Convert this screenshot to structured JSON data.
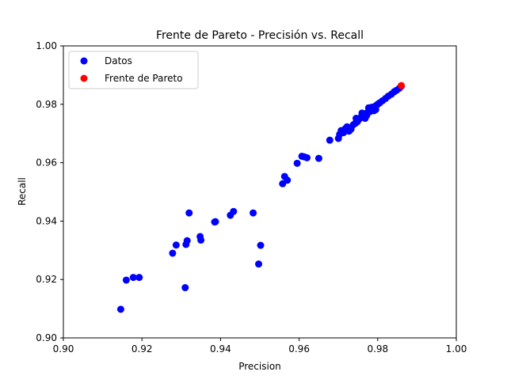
{
  "chart_data": {
    "type": "scatter",
    "title": "Frente de Pareto - Precisión vs. Recall",
    "xlabel": "Precision",
    "ylabel": "Recall",
    "xlim": [
      0.9,
      1.0
    ],
    "ylim": [
      0.9,
      1.0
    ],
    "xticks": [
      "0.90",
      "0.92",
      "0.94",
      "0.96",
      "0.98",
      "1.00"
    ],
    "yticks": [
      "0.90",
      "0.92",
      "0.94",
      "0.96",
      "0.98",
      "1.00"
    ],
    "grid": false,
    "legend_position": "top-left",
    "series": [
      {
        "name": "Datos",
        "color": "#0000ff",
        "points": [
          [
            0.9146,
            0.9098
          ],
          [
            0.916,
            0.9198
          ],
          [
            0.9178,
            0.9207
          ],
          [
            0.9193,
            0.9207
          ],
          [
            0.9278,
            0.929
          ],
          [
            0.9287,
            0.9318
          ],
          [
            0.931,
            0.9172
          ],
          [
            0.9312,
            0.932
          ],
          [
            0.9315,
            0.9333
          ],
          [
            0.932,
            0.9428
          ],
          [
            0.9385,
            0.9397
          ],
          [
            0.9387,
            0.9398
          ],
          [
            0.9348,
            0.9347
          ],
          [
            0.935,
            0.9335
          ],
          [
            0.9425,
            0.942
          ],
          [
            0.9433,
            0.9433
          ],
          [
            0.9483,
            0.9428
          ],
          [
            0.9497,
            0.9253
          ],
          [
            0.9502,
            0.9317
          ],
          [
            0.9558,
            0.9528
          ],
          [
            0.9563,
            0.9553
          ],
          [
            0.957,
            0.954
          ],
          [
            0.9595,
            0.9598
          ],
          [
            0.9607,
            0.9622
          ],
          [
            0.9613,
            0.962
          ],
          [
            0.962,
            0.9617
          ],
          [
            0.965,
            0.9615
          ],
          [
            0.9678,
            0.9677
          ],
          [
            0.97,
            0.9683
          ],
          [
            0.9703,
            0.9697
          ],
          [
            0.9707,
            0.971
          ],
          [
            0.9713,
            0.9703
          ],
          [
            0.9718,
            0.9717
          ],
          [
            0.9722,
            0.9723
          ],
          [
            0.9727,
            0.9708
          ],
          [
            0.9732,
            0.9715
          ],
          [
            0.9738,
            0.973
          ],
          [
            0.9743,
            0.9735
          ],
          [
            0.9748,
            0.974
          ],
          [
            0.9752,
            0.975
          ],
          [
            0.9757,
            0.9755
          ],
          [
            0.9762,
            0.976
          ],
          [
            0.9766,
            0.9765
          ],
          [
            0.977,
            0.9768
          ],
          [
            0.9774,
            0.9772
          ],
          [
            0.9778,
            0.9776
          ],
          [
            0.9782,
            0.978
          ],
          [
            0.9786,
            0.9785
          ],
          [
            0.979,
            0.979
          ],
          [
            0.9795,
            0.9795
          ],
          [
            0.98,
            0.98
          ],
          [
            0.9805,
            0.9805
          ],
          [
            0.9812,
            0.9812
          ],
          [
            0.982,
            0.982
          ],
          [
            0.9827,
            0.9828
          ],
          [
            0.9835,
            0.9835
          ],
          [
            0.9842,
            0.9843
          ],
          [
            0.9848,
            0.9848
          ],
          [
            0.9855,
            0.9855
          ],
          [
            0.986,
            0.9862
          ],
          [
            0.9752,
            0.9748
          ],
          [
            0.9768,
            0.9752
          ],
          [
            0.978,
            0.9775
          ],
          [
            0.979,
            0.9778
          ],
          [
            0.9795,
            0.9782
          ],
          [
            0.9772,
            0.9762
          ],
          [
            0.976,
            0.977
          ],
          [
            0.9745,
            0.9752
          ],
          [
            0.9777,
            0.9788
          ],
          [
            0.9785,
            0.979
          ]
        ]
      },
      {
        "name": "Frente de Pareto",
        "color": "#ff0000",
        "points": [
          [
            0.986,
            0.9864
          ]
        ]
      }
    ]
  }
}
